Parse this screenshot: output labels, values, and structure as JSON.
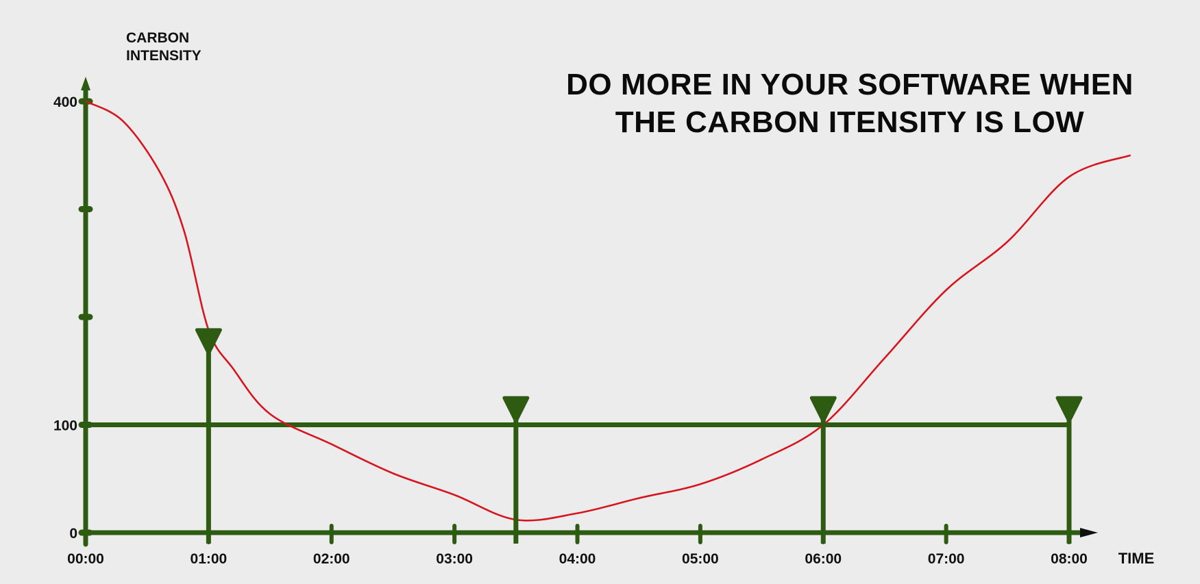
{
  "chart_data": {
    "type": "line",
    "title": [
      "DO MORE IN YOUR SOFTWARE WHEN",
      "THE CARBON ITENSITY IS LOW"
    ],
    "ylabel": [
      "CARBON",
      "INTENSITY"
    ],
    "xlabel": "TIME",
    "x_ticks": [
      "00:00",
      "01:00",
      "02:00",
      "03:00",
      "04:00",
      "05:00",
      "06:00",
      "07:00",
      "08:00"
    ],
    "y_ticks": [
      {
        "value": 0,
        "label": "0"
      },
      {
        "value": 100,
        "label": "100"
      },
      {
        "value": 200,
        "label": ""
      },
      {
        "value": 300,
        "label": ""
      },
      {
        "value": 400,
        "label": "400"
      }
    ],
    "xlim": [
      0,
      8
    ],
    "ylim": [
      0,
      400
    ],
    "series": [
      {
        "color": "#d7151f",
        "x": [
          0,
          0.3,
          0.6,
          0.8,
          1.0,
          1.2,
          1.5,
          2.0,
          2.5,
          3.0,
          3.5,
          4.0,
          4.5,
          5.0,
          5.5,
          6.0,
          6.5,
          7.0,
          7.5,
          8.0,
          8.5
        ],
        "y": [
          400,
          382,
          335,
          280,
          188,
          152,
          110,
          82,
          55,
          35,
          12,
          18,
          32,
          45,
          68,
          100,
          162,
          225,
          270,
          330,
          350
        ]
      }
    ],
    "threshold": {
      "value": 100,
      "color": "#2e5b12"
    },
    "markers": {
      "color": "#2e5b12",
      "x": [
        1.0,
        3.5,
        6.0,
        8.0
      ],
      "top_y": [
        188,
        125,
        125,
        125
      ]
    },
    "axis_color": "#2e5b12",
    "grid": false
  }
}
